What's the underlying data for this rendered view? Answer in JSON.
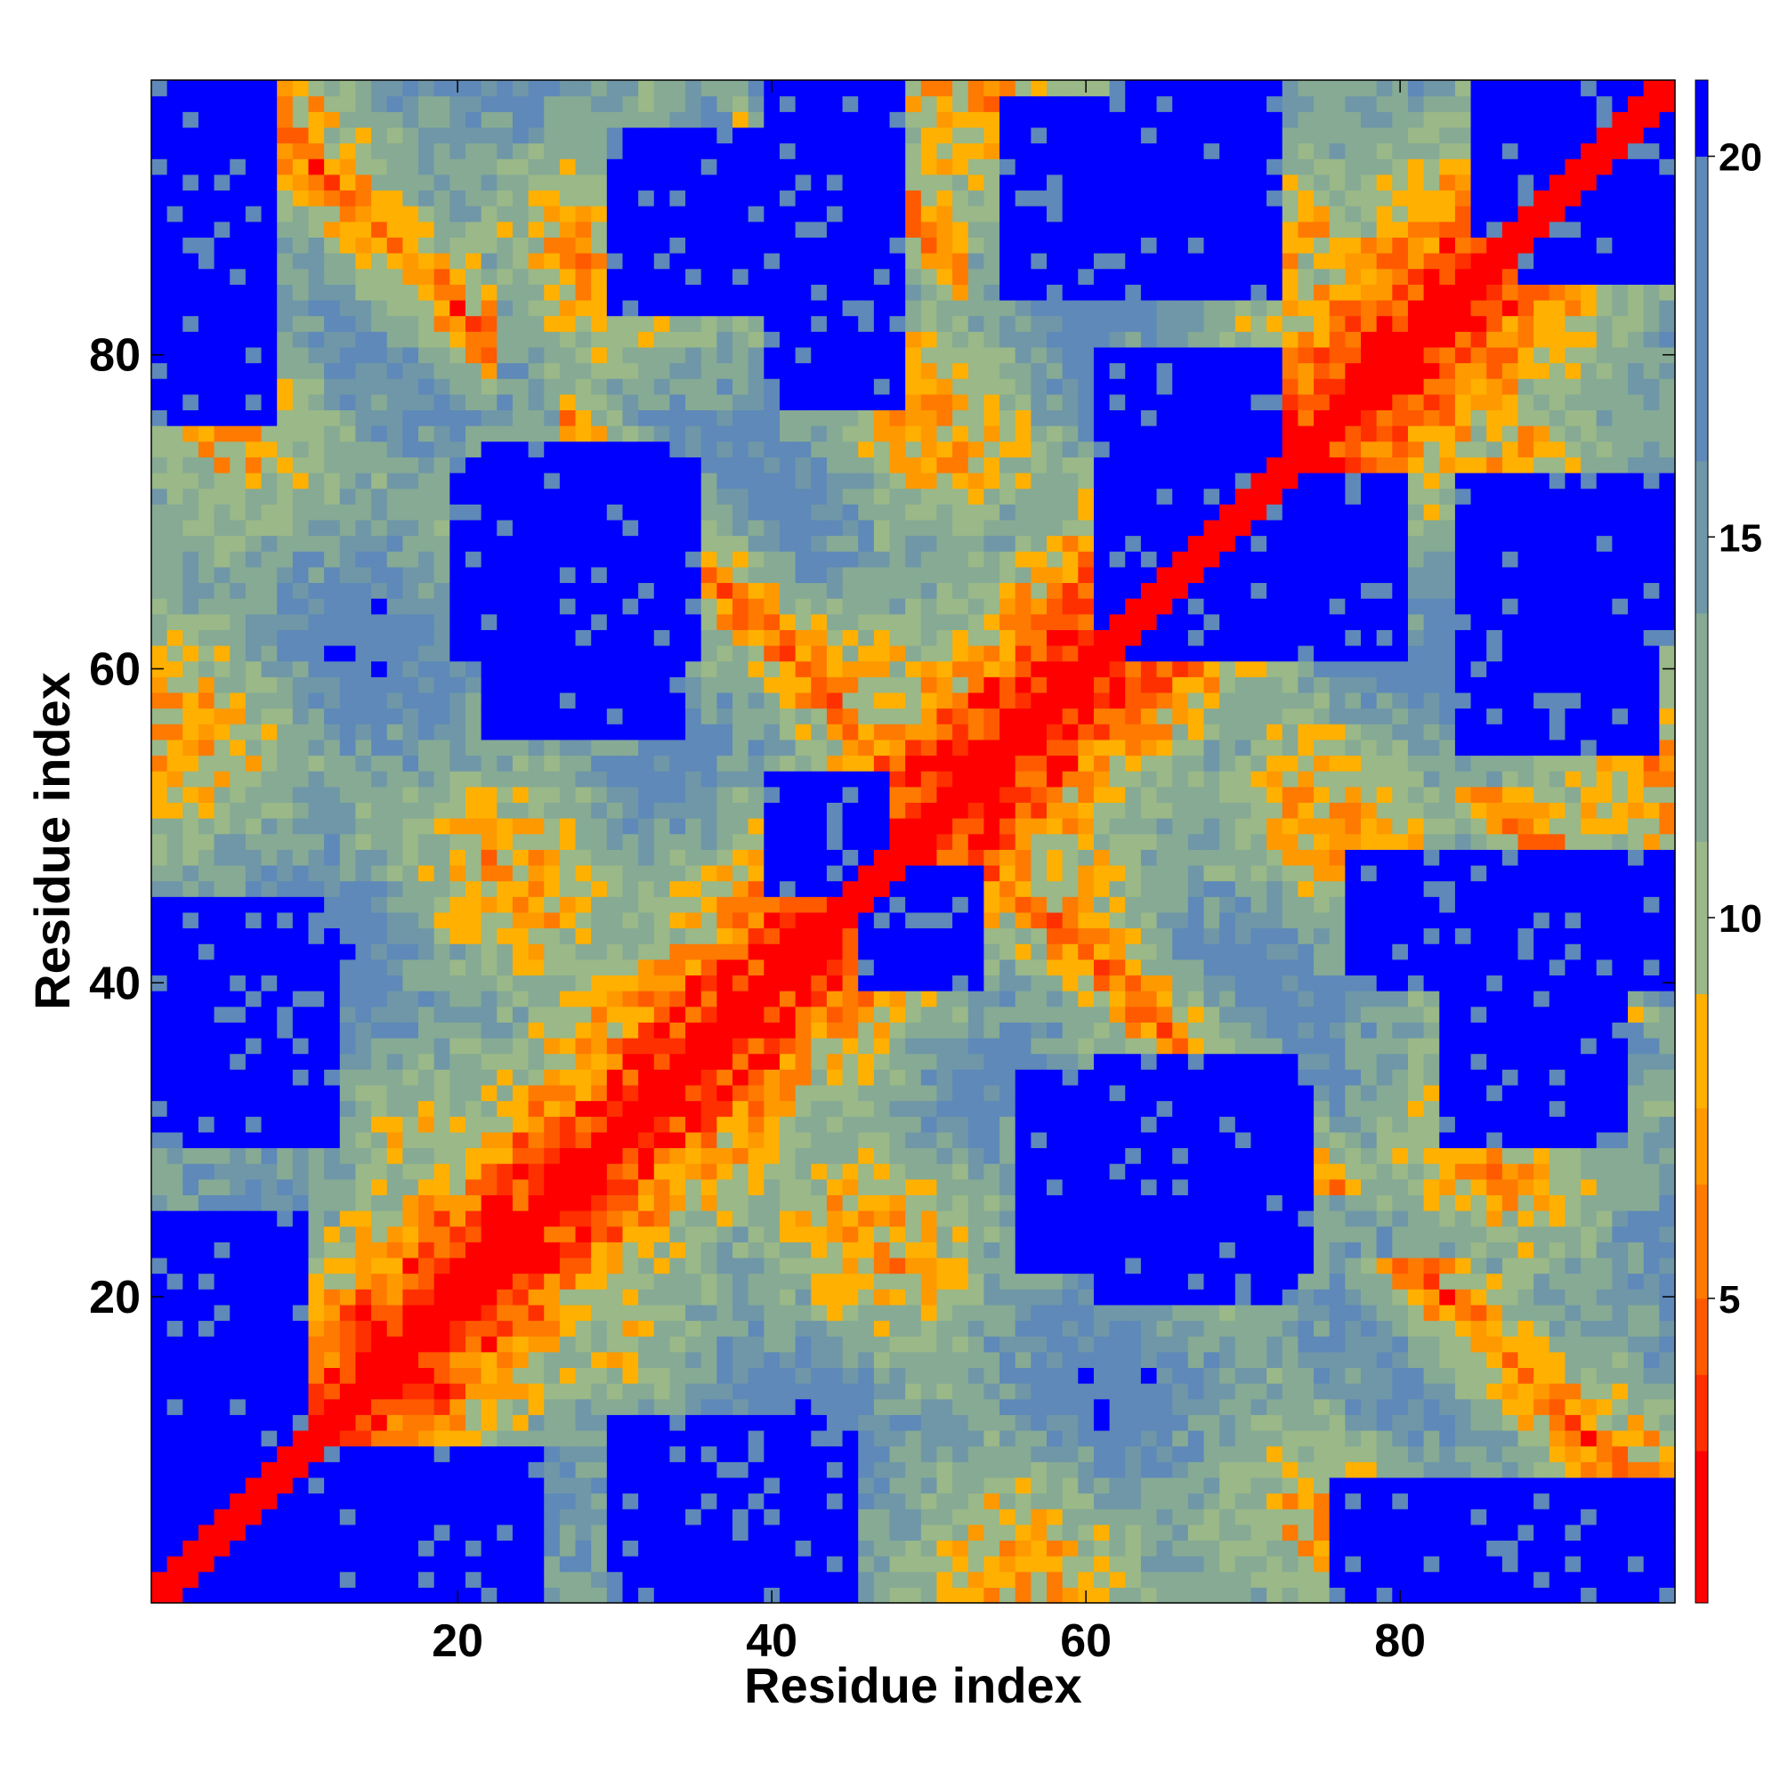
{
  "chart_data": {
    "type": "heatmap",
    "title": "",
    "xlabel": "Residue index",
    "ylabel": "Residue index",
    "n_residues": 97,
    "xlim": [
      1,
      97
    ],
    "ylim": [
      1,
      97
    ],
    "x_ticks": [
      20,
      40,
      60,
      80
    ],
    "y_ticks": [
      20,
      40,
      60,
      80
    ],
    "x_tick_labels": [
      "20",
      "40",
      "60",
      "80"
    ],
    "y_tick_labels": [
      "20",
      "40",
      "60",
      "80"
    ],
    "colorbar": {
      "range": [
        1,
        21
      ],
      "ticks": [
        5,
        10,
        15,
        20
      ],
      "tick_labels": [
        "5",
        "10",
        "15",
        "20"
      ],
      "bins": [
        {
          "max": 3,
          "color": "#ff0000"
        },
        {
          "max": 4,
          "color": "#ff3000"
        },
        {
          "max": 5,
          "color": "#ff5a00"
        },
        {
          "max": 6.5,
          "color": "#ff7a00"
        },
        {
          "max": 7.5,
          "color": "#ff9900"
        },
        {
          "max": 9,
          "color": "#ffb000"
        },
        {
          "max": 11,
          "color": "#9ab888"
        },
        {
          "max": 14,
          "color": "#86aa94"
        },
        {
          "max": 16,
          "color": "#6f97a8"
        },
        {
          "max": 20,
          "color": "#5e89b8"
        },
        {
          "max": 100,
          "color": "#0000ff"
        }
      ]
    },
    "distance_model": {
      "description": "contact distance map, symmetric about diagonal",
      "diagonal_value": 1,
      "max_value": 21,
      "antiparallel_strand_pairs": [
        {
          "sum": 103,
          "i_range": [
            7,
            22
          ]
        },
        {
          "sum": 102,
          "i_range": [
            27,
            44
          ]
        },
        {
          "sum": 160,
          "i_range": [
            53,
            72
          ]
        },
        {
          "sum": 101,
          "i_range": [
            45,
            58
          ]
        },
        {
          "sum": 130,
          "i_range": [
            38,
            48
          ]
        },
        {
          "sum": 138,
          "i_range": [
            40,
            52
          ]
        }
      ],
      "empty_regions": [
        {
          "x": [
            22,
            34
          ],
          "y": [
            56,
            74
          ]
        },
        {
          "x": [
            61,
            72
          ],
          "y": [
            62,
            80
          ]
        },
        {
          "x": [
            61,
            73
          ],
          "y": [
            20,
            35
          ]
        },
        {
          "x": [
            46,
            53
          ],
          "y": [
            40,
            47
          ]
        },
        {
          "x": [
            83,
            94
          ],
          "y": [
            30,
            45
          ]
        },
        {
          "x": [
            84,
            96
          ],
          "y": [
            55,
            72
          ]
        },
        {
          "x": [
            1,
            10
          ],
          "y": [
            1,
            25
          ]
        },
        {
          "x": [
            30,
            45
          ],
          "y": [
            1,
            12
          ]
        },
        {
          "x": [
            76,
            97
          ],
          "y": [
            1,
            5
          ]
        },
        {
          "x": [
            1,
            8
          ],
          "y": [
            76,
            97
          ]
        },
        {
          "x": [
            40,
            48
          ],
          "y": [
            77,
            97
          ]
        },
        {
          "x": [
            62,
            72
          ],
          "y": [
            88,
            97
          ]
        },
        {
          "x": [
            85,
            97
          ],
          "y": [
            88,
            97
          ]
        }
      ]
    }
  }
}
